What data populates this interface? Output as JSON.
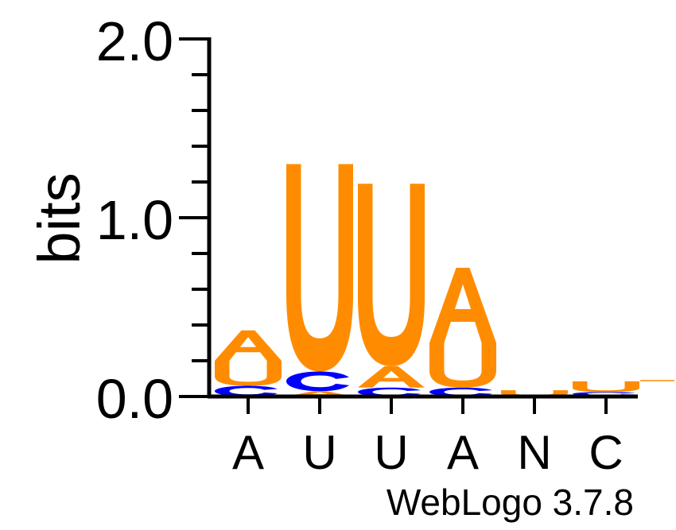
{
  "chart_data": {
    "type": "sequence-logo",
    "ylabel": "bits",
    "ylim": [
      0,
      2.0
    ],
    "yticks": [
      {
        "value": 0.0,
        "label": "0.0"
      },
      {
        "value": 1.0,
        "label": "1.0"
      },
      {
        "value": 2.0,
        "label": "2.0"
      }
    ],
    "y_minor_step": 0.2,
    "xticks": [
      "A",
      "U",
      "U",
      "A",
      "N",
      "C"
    ],
    "footer": "WebLogo 3.7.8",
    "colors": {
      "A": "#ff8c00",
      "U": "#ff8c00",
      "C": "#0000ff"
    },
    "positions": [
      {
        "label": "A",
        "stack": [
          {
            "letter": "C",
            "height": 0.06
          },
          {
            "letter": "U",
            "height": 0.14
          },
          {
            "letter": "A",
            "height": 0.17
          }
        ]
      },
      {
        "label": "U",
        "stack": [
          {
            "letter": "A",
            "height": 0.03
          },
          {
            "letter": "C",
            "height": 0.11
          },
          {
            "letter": "U",
            "height": 1.16
          }
        ]
      },
      {
        "label": "U",
        "stack": [
          {
            "letter": "C",
            "height": 0.05
          },
          {
            "letter": "A",
            "height": 0.12
          },
          {
            "letter": "U",
            "height": 1.02
          }
        ]
      },
      {
        "label": "A",
        "stack": [
          {
            "letter": "C",
            "height": 0.05
          },
          {
            "letter": "U",
            "height": 0.25
          },
          {
            "letter": "A",
            "height": 0.42
          }
        ]
      },
      {
        "label": "N",
        "stack": [
          {
            "letter": "A",
            "height": 0.005
          },
          {
            "letter": "U",
            "height": 0.03
          }
        ]
      },
      {
        "label": "C",
        "stack": [
          {
            "letter": "A",
            "height": 0.005
          },
          {
            "letter": "C",
            "height": 0.02
          },
          {
            "letter": "U",
            "height": 0.06
          }
        ]
      }
    ]
  }
}
